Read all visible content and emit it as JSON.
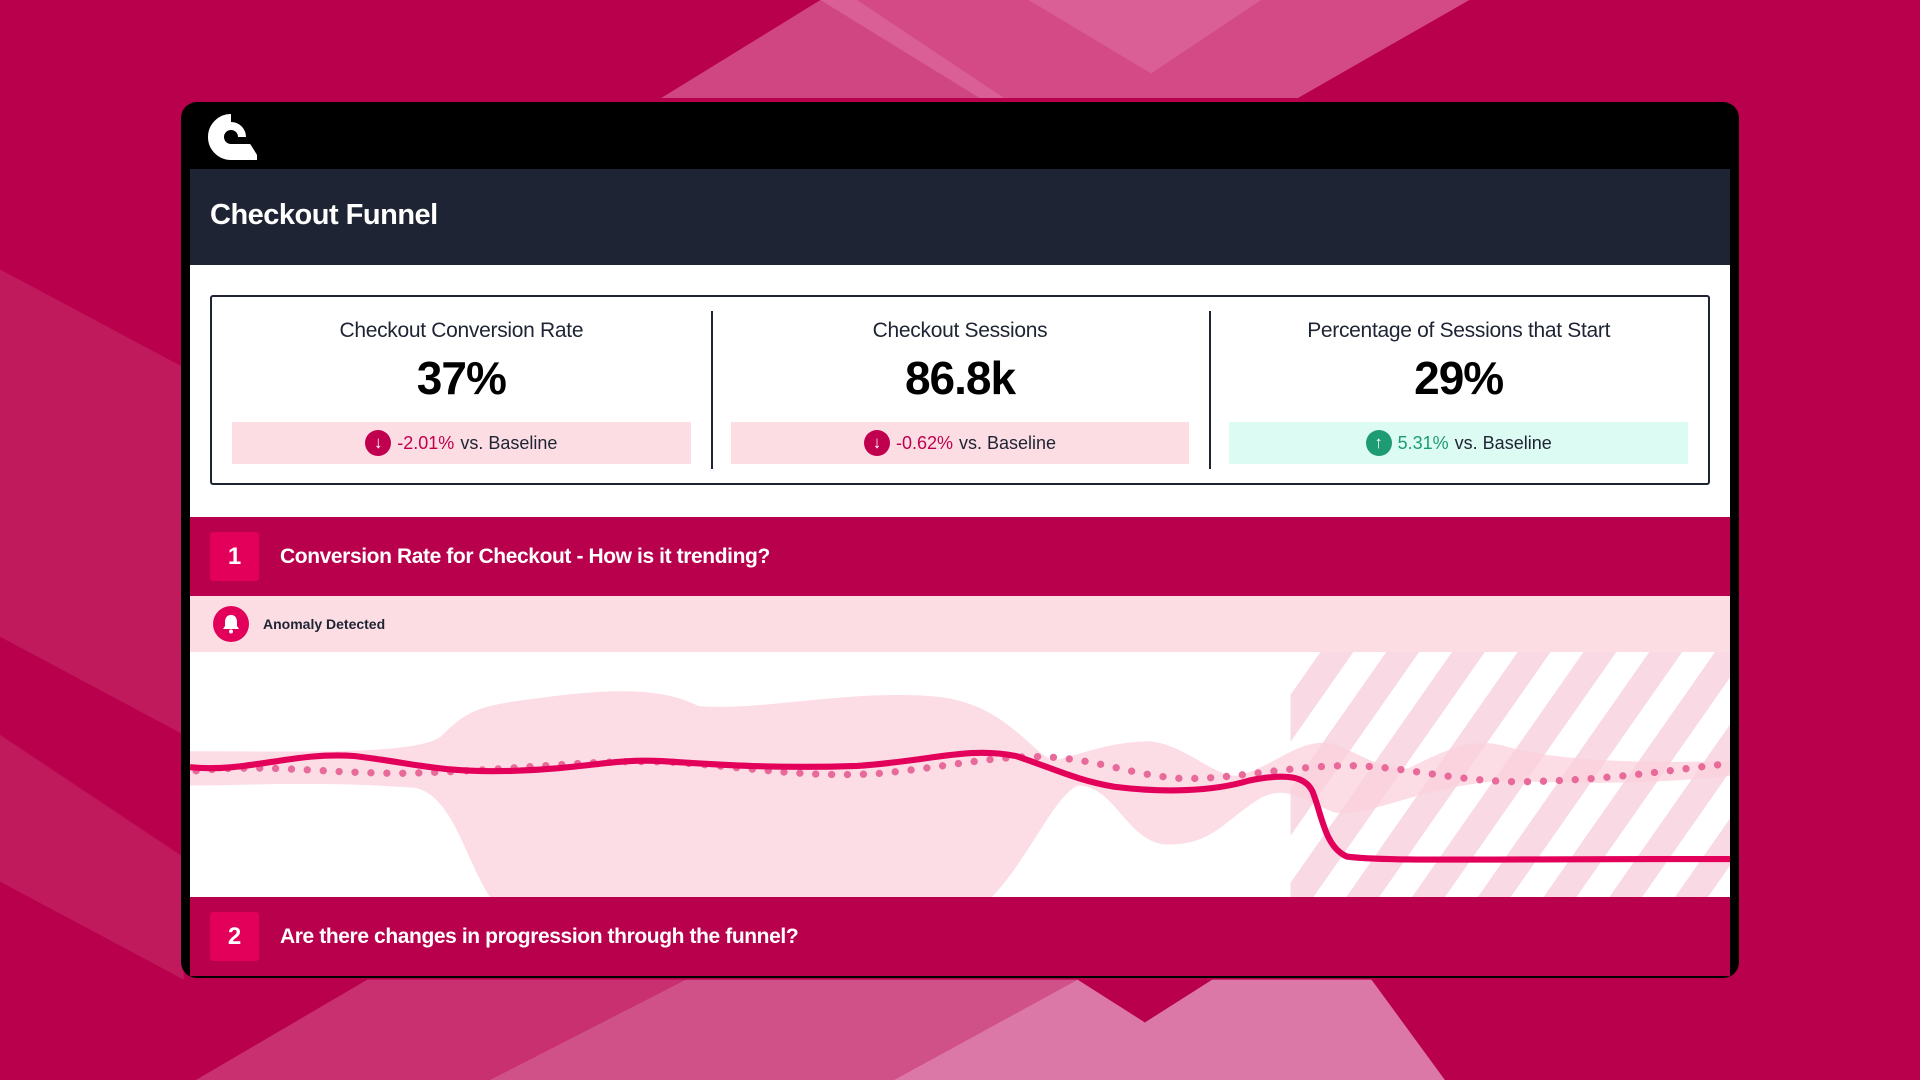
{
  "colors": {
    "brand": "#b8004c",
    "accent": "#e2005a",
    "header": "#1e2433",
    "negative": "#c0004f",
    "positive": "#1d9b73"
  },
  "logo": "q-logo-icon",
  "header": {
    "title": "Checkout Funnel"
  },
  "kpis": [
    {
      "title": "Checkout Conversion Rate",
      "value": "37%",
      "delta": "-2.01%",
      "suffix": "vs. Baseline",
      "direction": "down",
      "icon": "arrow-down-circle-icon"
    },
    {
      "title": "Checkout Sessions",
      "value": "86.8k",
      "delta": "-0.62%",
      "suffix": "vs. Baseline",
      "direction": "down",
      "icon": "arrow-down-circle-icon"
    },
    {
      "title": "Percentage of Sessions that Start",
      "value": "29%",
      "delta": "5.31%",
      "suffix": "vs. Baseline",
      "direction": "up",
      "icon": "arrow-up-circle-icon"
    }
  ],
  "sections": [
    {
      "number": "1",
      "title": "Conversion Rate for Checkout - How is it trending?"
    },
    {
      "number": "2",
      "title": "Are there changes in progression through the funnel?"
    }
  ],
  "anomaly": {
    "label": "Anomaly Detected",
    "icon": "bell-icon"
  }
}
